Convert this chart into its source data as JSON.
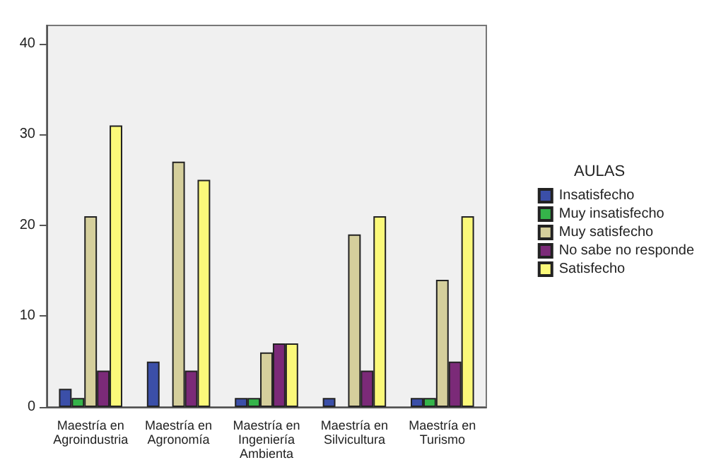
{
  "chart_data": {
    "type": "bar",
    "categories": [
      "Maestría en\nAgroindustria",
      "Maestría en\nAgronomía",
      "Maestría en\nIngeniería\nAmbienta",
      "Maestría en\nSilvicultura",
      "Maestría en\nTurismo"
    ],
    "legend_title": "AULAS",
    "legend": "right",
    "grid": false,
    "ylim": [
      0,
      42
    ],
    "yticks": [
      0,
      10,
      20,
      30,
      40
    ],
    "series": [
      {
        "name": "Insatisfecho",
        "color": "#3b4fa8",
        "values": [
          2,
          5,
          1,
          1,
          1
        ]
      },
      {
        "name": "Muy insatisfecho",
        "color": "#35b44a",
        "values": [
          1,
          null,
          1,
          null,
          1
        ]
      },
      {
        "name": "Muy satisfecho",
        "color": "#d5cf9c",
        "values": [
          21,
          27,
          6,
          19,
          14
        ]
      },
      {
        "name": "No sabe no responde",
        "color": "#7b2a78",
        "values": [
          4,
          4,
          7,
          4,
          5
        ]
      },
      {
        "name": "Satisfecho",
        "color": "#fbf97a",
        "values": [
          31,
          25,
          7,
          21,
          21
        ]
      }
    ]
  }
}
